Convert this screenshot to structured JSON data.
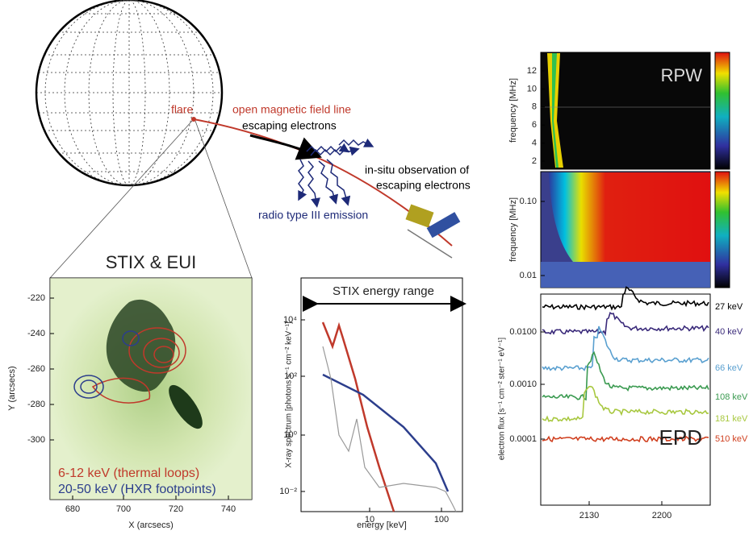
{
  "sun": {
    "flare_label": "flare",
    "field_line_label": "open magnetic field line",
    "electrons_label": "escaping electrons",
    "radio_label": "radio type III emission",
    "insitu_label": [
      "in-situ observation of",
      "escaping electrons"
    ]
  },
  "stix_eui": {
    "title": "STIX & EUI",
    "xlabel": "X (arcsecs)",
    "ylabel": "Y (arcsecs)",
    "xticks": [
      "680",
      "700",
      "720",
      "740"
    ],
    "yticks": [
      "-220",
      "-240",
      "-260",
      "-280",
      "-300"
    ],
    "legend": [
      "6-12 keV (thermal loops)",
      "20-50 keV (HXR footpoints)"
    ]
  },
  "spectrum": {
    "title": "STIX energy range",
    "xlabel": "energy [keV]",
    "ylabel": "X-ray spectrum [photons s⁻¹ cm⁻² keV⁻¹]",
    "xticks": [
      "10",
      "100"
    ],
    "yticks": [
      "10⁴",
      "10²",
      "10⁰",
      "10⁻²"
    ]
  },
  "rpw": {
    "label": "RPW",
    "top_ylabel": "frequency [MHz]",
    "top_yticks": [
      "12",
      "10",
      "8",
      "6",
      "4",
      "2"
    ],
    "bottom_ylabel": "frequency [MHz]",
    "bottom_yticks": [
      "0.10",
      "0.01"
    ]
  },
  "epd": {
    "label": "EPD",
    "ylabel": "electron flux [s⁻¹ cm⁻² ster⁻¹ eV⁻¹]",
    "yticks": [
      "0.0100",
      "0.0010",
      "0.0001"
    ],
    "xticks": [
      "2130",
      "2200"
    ],
    "energies": [
      "27 keV",
      "40 keV",
      "66 keV",
      "108 keV",
      "181 keV",
      "510 keV"
    ]
  }
}
